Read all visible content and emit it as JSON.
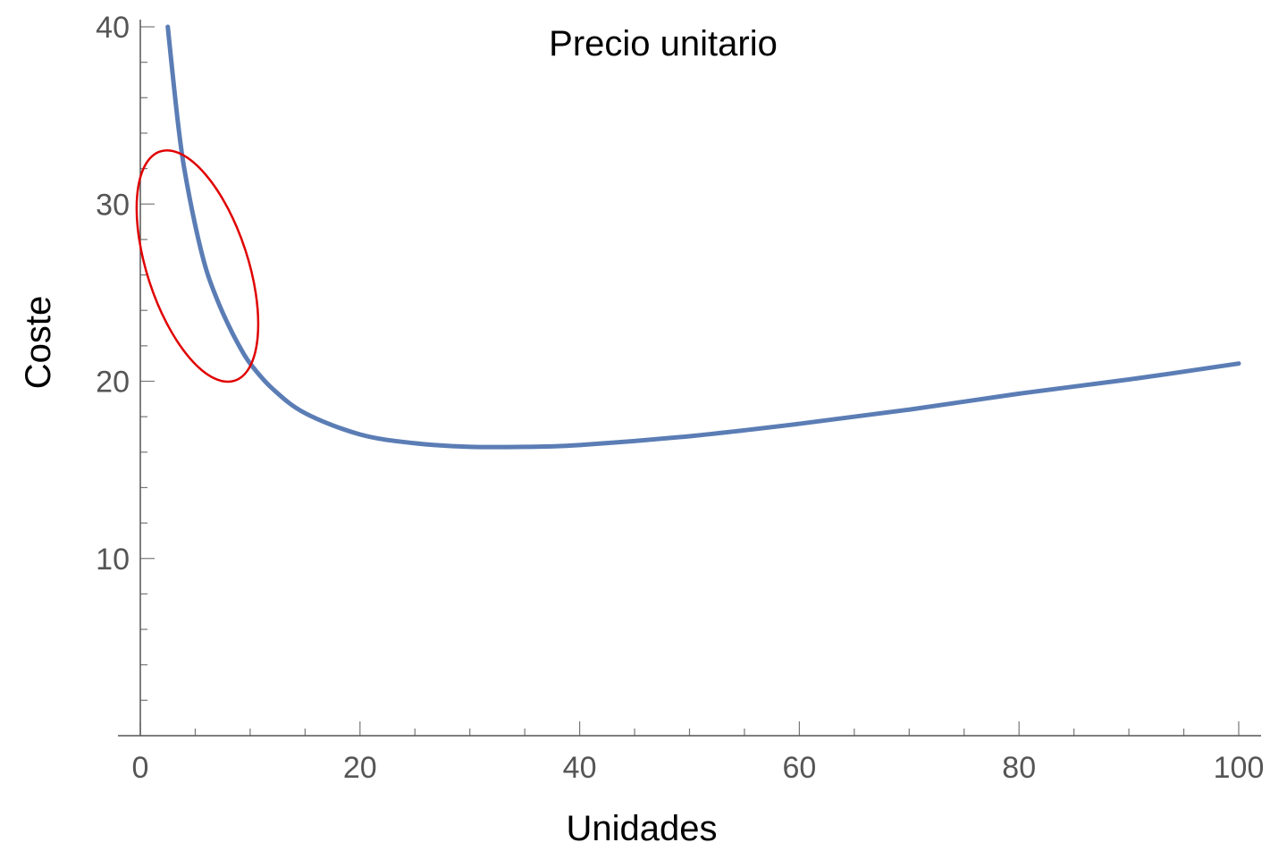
{
  "chart_data": {
    "type": "line",
    "title": "Precio unitario",
    "xlabel": "Unidades",
    "ylabel": "Coste",
    "xlim": [
      0,
      100
    ],
    "ylim": [
      0,
      40
    ],
    "x_ticks": [
      "0",
      "20",
      "40",
      "60",
      "80",
      "100"
    ],
    "y_ticks": [
      "10",
      "20",
      "30",
      "40"
    ],
    "grid": false,
    "series": [
      {
        "color": "#5b7db5",
        "x": [
          2.5,
          3,
          3.5,
          4,
          5,
          6,
          7,
          8,
          9,
          10,
          12,
          15,
          20,
          25,
          30,
          35,
          40,
          50,
          60,
          70,
          80,
          90,
          100
        ],
        "y": [
          40.0,
          37.0,
          34.2,
          32.0,
          28.8,
          26.3,
          24.6,
          23.2,
          22.0,
          21.0,
          19.6,
          18.2,
          17.0,
          16.5,
          16.3,
          16.3,
          16.4,
          16.9,
          17.6,
          18.4,
          19.3,
          20.1,
          21.0
        ]
      }
    ],
    "annotations": [
      {
        "type": "ellipse",
        "color": "#e00000",
        "cx": 5.2,
        "cy": 26.5,
        "rx": 4.6,
        "ry": 6.8,
        "rotation_deg": -18
      }
    ]
  }
}
